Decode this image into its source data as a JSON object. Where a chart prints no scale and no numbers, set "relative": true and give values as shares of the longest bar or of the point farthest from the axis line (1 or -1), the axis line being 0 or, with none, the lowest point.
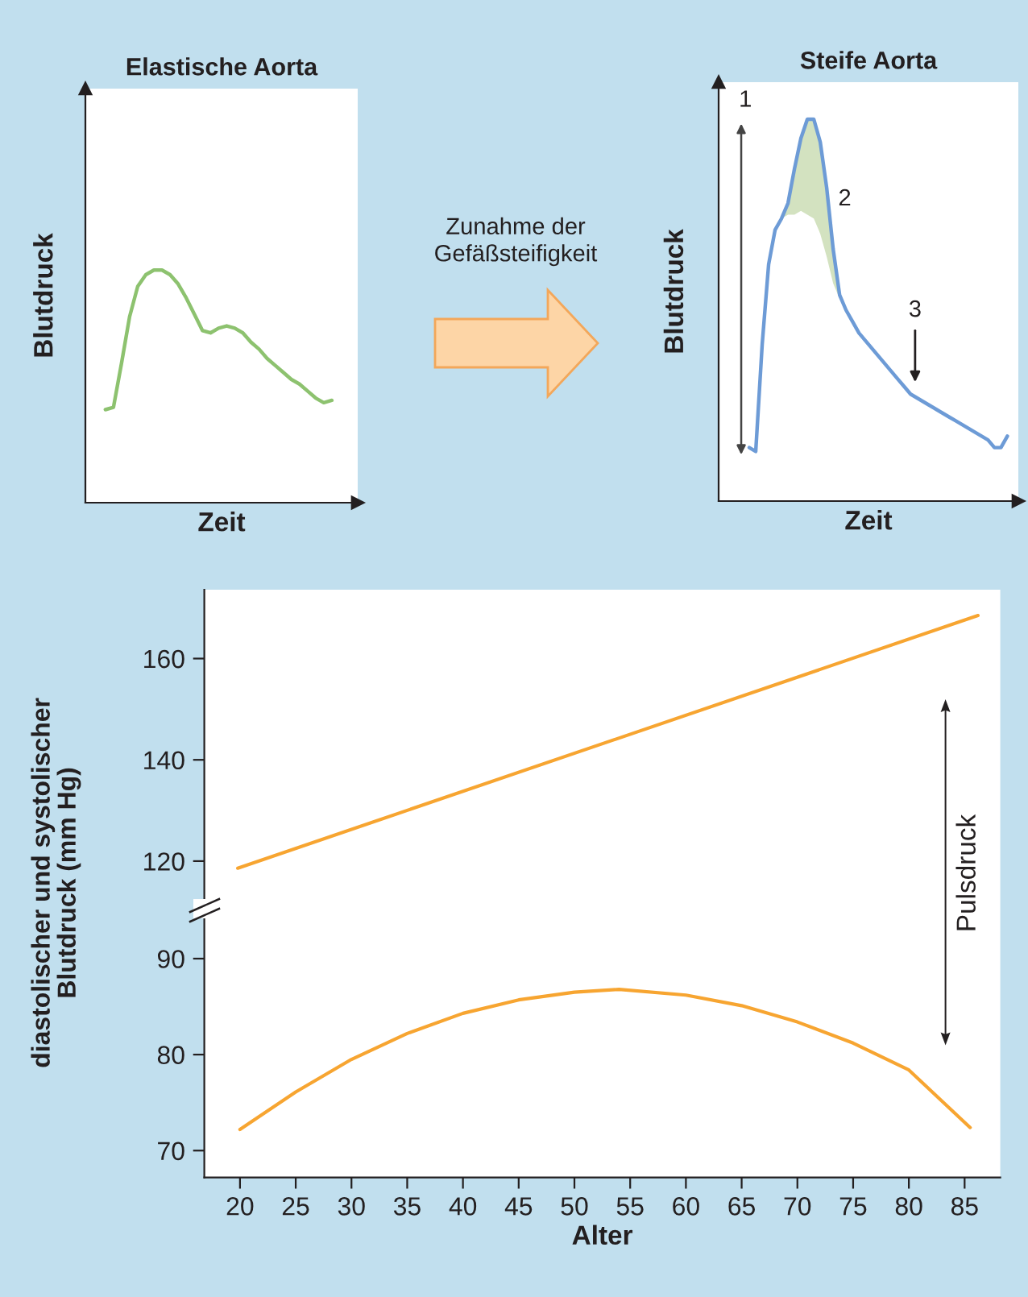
{
  "chart_data": [
    {
      "type": "line",
      "title": "Elastische Aorta",
      "xlabel": "Zeit",
      "ylabel": "Blutdruck",
      "relative": true,
      "tick_labels": false,
      "categories": [
        null,
        null,
        null,
        null,
        null,
        null,
        null,
        null,
        null,
        null,
        null,
        null,
        null,
        null,
        null,
        null,
        null,
        null,
        null,
        null,
        null,
        null,
        null,
        null,
        null,
        null,
        null,
        null,
        null
      ],
      "series": [
        {
          "color": "#8dc26f",
          "values": [
            0.4,
            0.41,
            0.6,
            0.8,
            0.93,
            0.98,
            1,
            1.0,
            0.98,
            0.94,
            0.88,
            0.81,
            0.74,
            0.73,
            0.75,
            0.76,
            0.75,
            0.73,
            0.69,
            0.66,
            0.62,
            0.59,
            0.56,
            0.53,
            0.51,
            0.48,
            0.45,
            0.43,
            0.44
          ]
        }
      ],
      "annotations": [
        "Zunahme der\nGefäßsteifigkeit"
      ]
    },
    {
      "type": "line",
      "title": "Steife Aorta",
      "xlabel": "Zeit",
      "ylabel": "Blutdruck",
      "relative": true,
      "tick_labels": false,
      "categories": [
        null,
        null,
        null,
        null,
        null,
        null,
        null,
        null,
        null,
        null,
        null,
        null,
        null,
        null,
        null,
        null,
        null,
        null,
        null,
        null,
        null,
        null,
        null,
        null,
        null,
        null,
        null,
        null,
        null,
        null,
        null,
        null,
        null,
        null,
        null,
        null,
        null,
        null,
        null,
        null,
        null
      ],
      "series": [
        {
          "color": "#6d9bd6",
          "values": [
            0.14,
            0.13,
            0.41,
            0.62,
            0.71,
            0.74,
            0.78,
            0.87,
            0.95,
            1,
            1.0,
            0.94,
            0.82,
            0.66,
            0.54,
            0.5,
            0.47,
            0.44,
            0.42,
            0.4,
            0.38,
            0.36,
            0.34,
            0.32,
            0.3,
            0.28,
            0.27,
            0.26,
            0.25,
            0.24,
            0.23,
            0.22,
            0.21,
            0.2,
            0.19,
            0.18,
            0.17,
            0.16,
            0.14,
            0.14,
            0.17
          ],
          "lower": [
            null,
            null,
            null,
            null,
            null,
            0.74,
            0.75,
            0.75,
            0.76,
            0.75,
            0.74,
            0.7,
            0.64,
            0.57,
            0.53,
            null,
            null,
            null,
            null,
            null,
            null,
            null,
            null,
            null,
            null,
            null,
            null,
            null,
            null,
            null,
            null,
            null,
            null,
            null,
            null,
            null,
            null,
            null,
            null,
            null,
            null
          ],
          "upper": [
            null,
            null,
            null,
            null,
            null,
            0.74,
            0.78,
            0.87,
            0.95,
            1,
            1.0,
            0.94,
            0.82,
            0.66,
            0.54,
            null,
            null,
            null,
            null,
            null,
            null,
            null,
            null,
            null,
            null,
            null,
            null,
            null,
            null,
            null,
            null,
            null,
            null,
            null,
            null,
            null,
            null,
            null,
            null,
            null,
            null
          ]
        }
      ],
      "annotations": [
        "1",
        "2",
        "3"
      ]
    },
    {
      "type": "line",
      "tick_labels": "y",
      "xlim": [
        16.8,
        88.2
      ],
      "ylim": [
        110.6,
        173.6
      ],
      "yticks": [
        120,
        140,
        160
      ],
      "series": [
        {
          "color": "#f7a531",
          "x": [
            19.8,
            86.2
          ],
          "values": [
            118.6,
            168.5
          ]
        }
      ],
      "annotations": [
        "Pulsdruck"
      ]
    },
    {
      "type": "line",
      "xlabel": "Alter",
      "ylabel": "diastolischer und systolischer\nBlutdruck (mm Hg)",
      "xlim": [
        16.8,
        88.2
      ],
      "ylim": [
        67.2,
        95.2
      ],
      "xticks": [
        20,
        25,
        30,
        35,
        40,
        45,
        50,
        55,
        60,
        65,
        70,
        75,
        80,
        85
      ],
      "yticks": [
        70,
        80,
        90
      ],
      "series": [
        {
          "color": "#f7a531",
          "x": [
            20,
            25,
            30,
            35,
            40,
            45,
            50,
            54,
            60,
            65,
            70,
            75,
            80,
            85.5
          ],
          "values": [
            72.2,
            76.1,
            79.5,
            82.2,
            84.3,
            85.7,
            86.5,
            86.8,
            86.2,
            85.1,
            83.4,
            81.2,
            78.4,
            72.4
          ]
        }
      ]
    }
  ]
}
